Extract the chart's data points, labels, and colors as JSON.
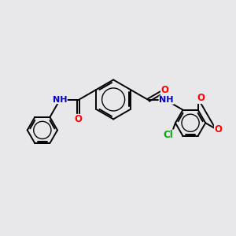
{
  "bg_color": "#e8e8eb",
  "bond_color": "#000000",
  "atom_colors": {
    "O": "#ff0000",
    "N": "#0000cc",
    "Cl": "#00aa00",
    "C": "#000000"
  },
  "lw": 1.4,
  "fs": 8.5,
  "dbo": 0.055
}
